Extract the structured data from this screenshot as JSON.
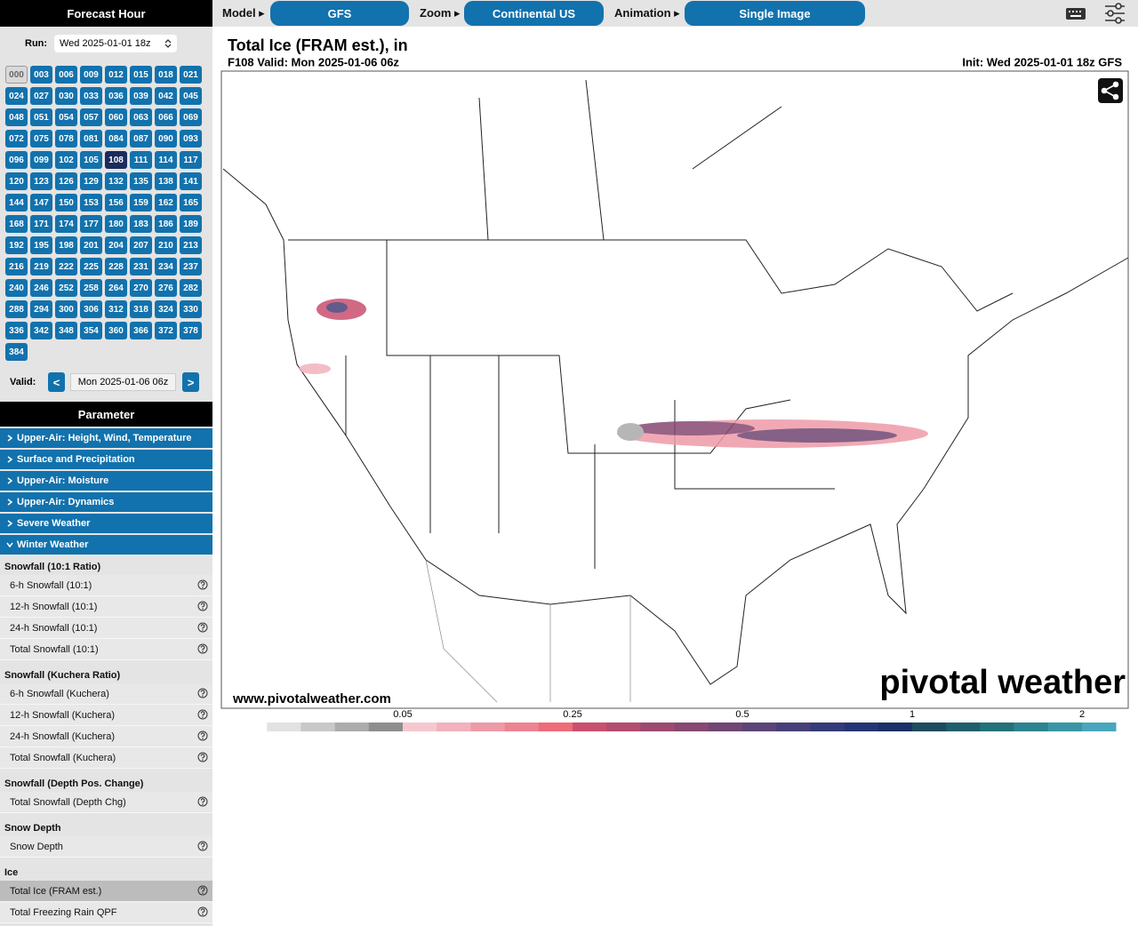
{
  "forecast_hour": {
    "title": "Forecast Hour",
    "run_label": "Run:",
    "run": "Wed 2025-01-01 18z",
    "hours": [
      "000",
      "003",
      "006",
      "009",
      "012",
      "015",
      "018",
      "021",
      "024",
      "027",
      "030",
      "033",
      "036",
      "039",
      "042",
      "045",
      "048",
      "051",
      "054",
      "057",
      "060",
      "063",
      "066",
      "069",
      "072",
      "075",
      "078",
      "081",
      "084",
      "087",
      "090",
      "093",
      "096",
      "099",
      "102",
      "105",
      "108",
      "111",
      "114",
      "117",
      "120",
      "123",
      "126",
      "129",
      "132",
      "135",
      "138",
      "141",
      "144",
      "147",
      "150",
      "153",
      "156",
      "159",
      "162",
      "165",
      "168",
      "171",
      "174",
      "177",
      "180",
      "183",
      "186",
      "189",
      "192",
      "195",
      "198",
      "201",
      "204",
      "207",
      "210",
      "213",
      "216",
      "219",
      "222",
      "225",
      "228",
      "231",
      "234",
      "237",
      "240",
      "246",
      "252",
      "258",
      "264",
      "270",
      "276",
      "282",
      "288",
      "294",
      "300",
      "306",
      "312",
      "318",
      "324",
      "330",
      "336",
      "342",
      "348",
      "354",
      "360",
      "366",
      "372",
      "378",
      "384"
    ],
    "selected": "108",
    "valid_label": "Valid:",
    "prev": "<",
    "valid": "Mon 2025-01-06 06z",
    "next": ">"
  },
  "parameter": {
    "title": "Parameter",
    "categories": [
      "Upper-Air: Height, Wind, Temperature",
      "Surface and Precipitation",
      "Upper-Air: Moisture",
      "Upper-Air: Dynamics",
      "Severe Weather",
      "Winter Weather"
    ],
    "expanded": "Winter Weather",
    "groups": [
      {
        "title": "Snowfall (10:1 Ratio)",
        "items": [
          "6-h Snowfall (10:1)",
          "12-h Snowfall (10:1)",
          "24-h Snowfall (10:1)",
          "Total Snowfall (10:1)"
        ]
      },
      {
        "title": "Snowfall (Kuchera Ratio)",
        "items": [
          "6-h Snowfall (Kuchera)",
          "12-h Snowfall (Kuchera)",
          "24-h Snowfall (Kuchera)",
          "Total Snowfall (Kuchera)"
        ]
      },
      {
        "title": "Snowfall (Depth Pos. Change)",
        "items": [
          "Total Snowfall (Depth Chg)"
        ]
      },
      {
        "title": "Snow Depth",
        "items": [
          "Snow Depth"
        ]
      },
      {
        "title": "Ice",
        "items": [
          "Total Ice (FRAM est.)",
          "Total Freezing Rain QPF"
        ]
      }
    ],
    "selected": "Total Ice (FRAM est.)"
  },
  "toolbar": {
    "model_label": "Model ▸",
    "model": "GFS",
    "zoom_label": "Zoom ▸",
    "zoom": "Continental US",
    "animation_label": "Animation ▸",
    "animation": "Single Image"
  },
  "map": {
    "title": "Total Ice (FRAM est.), in",
    "subtitle": "F108 Valid: Mon 2025-01-06 06z",
    "init": "Init: Wed 2025-01-01 18z GFS",
    "url": "www.pivotalweather.com",
    "watermark": "pivotal weather",
    "colorbar": {
      "labels": [
        0.05,
        0.25,
        0.5,
        1,
        2
      ],
      "colors": [
        "#ffffff",
        "#e2e2e2",
        "#c8c8c8",
        "#acacac",
        "#8e8e8e",
        "#f5c8d0",
        "#f1b2bd",
        "#ee9ba8",
        "#ec8492",
        "#ee6c79",
        "#c9506f",
        "#b34c6e",
        "#9c4a6f",
        "#874871",
        "#704673",
        "#5b4477",
        "#473f78",
        "#353a78",
        "#243573",
        "#1a3066",
        "#1d4b5f",
        "#1f5f6b",
        "#247279",
        "#2e8390",
        "#3b95a6",
        "#4ba6bd"
      ]
    }
  }
}
